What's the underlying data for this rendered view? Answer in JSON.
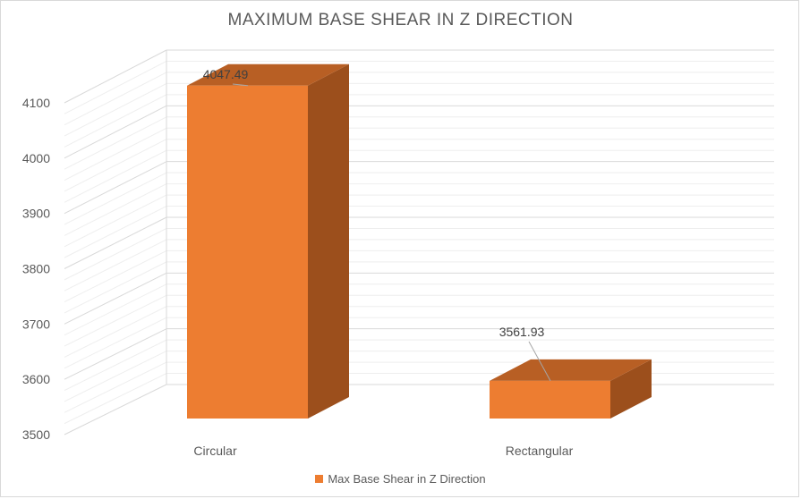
{
  "chart_data": {
    "type": "bar",
    "title": "MAXIMUM  BASE SHEAR IN Z DIRECTION",
    "categories": [
      "Circular",
      "Rectangular"
    ],
    "series": [
      {
        "name": "Max Base Shear in Z Direction",
        "values": [
          4047.49,
          3561.93
        ]
      }
    ],
    "data_labels": [
      "4047.49",
      "3561.93"
    ],
    "ylim": [
      3500,
      4100
    ],
    "yticks": [
      3500,
      3600,
      3700,
      3800,
      3900,
      4000,
      4100
    ],
    "grid": true,
    "legend": "bottom",
    "colors": {
      "front": "#ED7D31",
      "top": "#B85F24",
      "side": "#9C4F1C",
      "grid": "#d9d9d9"
    }
  }
}
